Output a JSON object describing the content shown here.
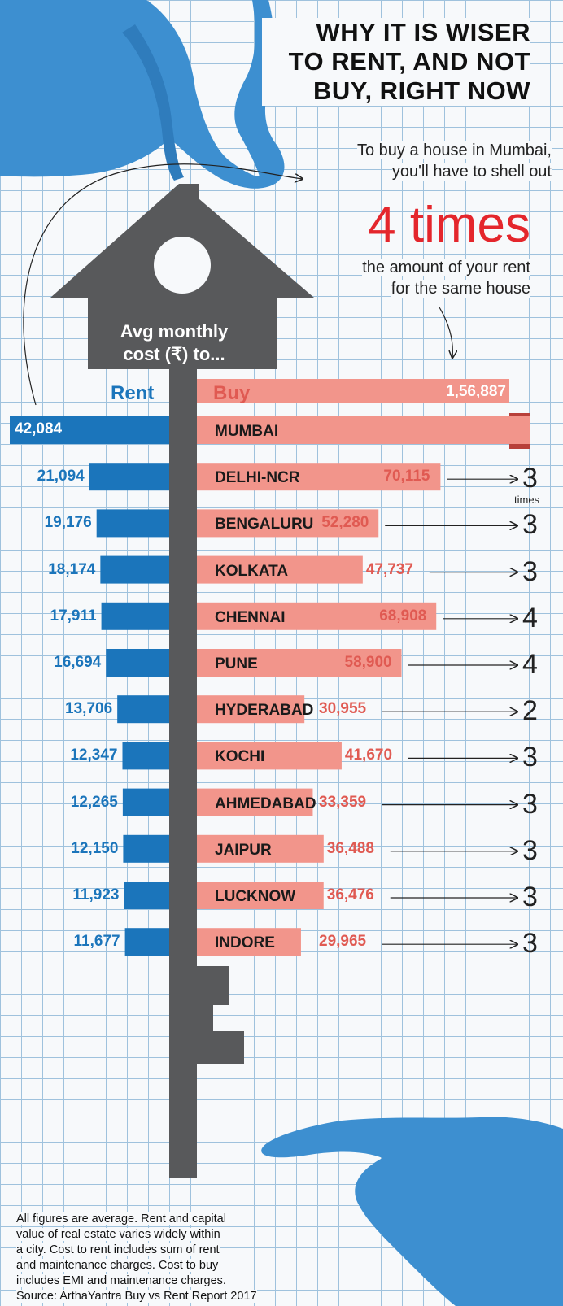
{
  "title_lines": [
    "WHY IT IS WISER",
    "TO RENT, AND NOT",
    "BUY, RIGHT NOW"
  ],
  "intro_lines_top": [
    "To buy a house in Mumbai,",
    "you'll have to shell out"
  ],
  "big_stat": "4 times",
  "intro_lines_bottom": [
    "the amount of your rent",
    "for the same house"
  ],
  "house_label_lines": [
    "Avg monthly",
    "cost (₹) to..."
  ],
  "times_label": "times",
  "footnote_lines": [
    "All figures are average. Rent and capital",
    "value of real estate varies widely within",
    "a city. Cost to rent includes sum of rent",
    "and maintenance charges. Cost to buy",
    "includes EMI and maintenance charges.",
    "Source: ArthaYantra Buy vs Rent Report 2017"
  ],
  "colors": {
    "rent": "#1b75bb",
    "buy": "#f2958b",
    "buy_text": "#e05a52",
    "key": "#58595b",
    "hand": "#3d8fd0",
    "accent": "#e4262c"
  },
  "chart_data": {
    "type": "bar",
    "title": "Avg monthly cost (₹) to...",
    "categories": [
      "MUMBAI",
      "DELHI-NCR",
      "BENGALURU",
      "KOLKATA",
      "CHENNAI",
      "PUNE",
      "HYDERABAD",
      "KOCHI",
      "AHMEDABAD",
      "JAIPUR",
      "LUCKNOW",
      "INDORE"
    ],
    "series": [
      {
        "name": "Rent",
        "values": [
          42084,
          21094,
          19176,
          18174,
          17911,
          16694,
          13706,
          12347,
          12265,
          12150,
          11923,
          11677
        ],
        "labels": [
          "42,084",
          "21,094",
          "19,176",
          "18,174",
          "17,911",
          "16,694",
          "13,706",
          "12,347",
          "12,265",
          "12,150",
          "11,923",
          "11,677"
        ]
      },
      {
        "name": "Buy",
        "values": [
          156887,
          70115,
          52280,
          47737,
          68908,
          58900,
          30955,
          41670,
          33359,
          36488,
          36476,
          29965
        ],
        "labels": [
          "1,56,887",
          "70,115",
          "52,280",
          "47,737",
          "68,908",
          "58,900",
          "30,955",
          "41,670",
          "33,359",
          "36,488",
          "36,476",
          "29,965"
        ]
      }
    ],
    "ratio": [
      "",
      "3",
      "3",
      "3",
      "4",
      "4",
      "2",
      "3",
      "3",
      "3",
      "3",
      "3"
    ]
  }
}
